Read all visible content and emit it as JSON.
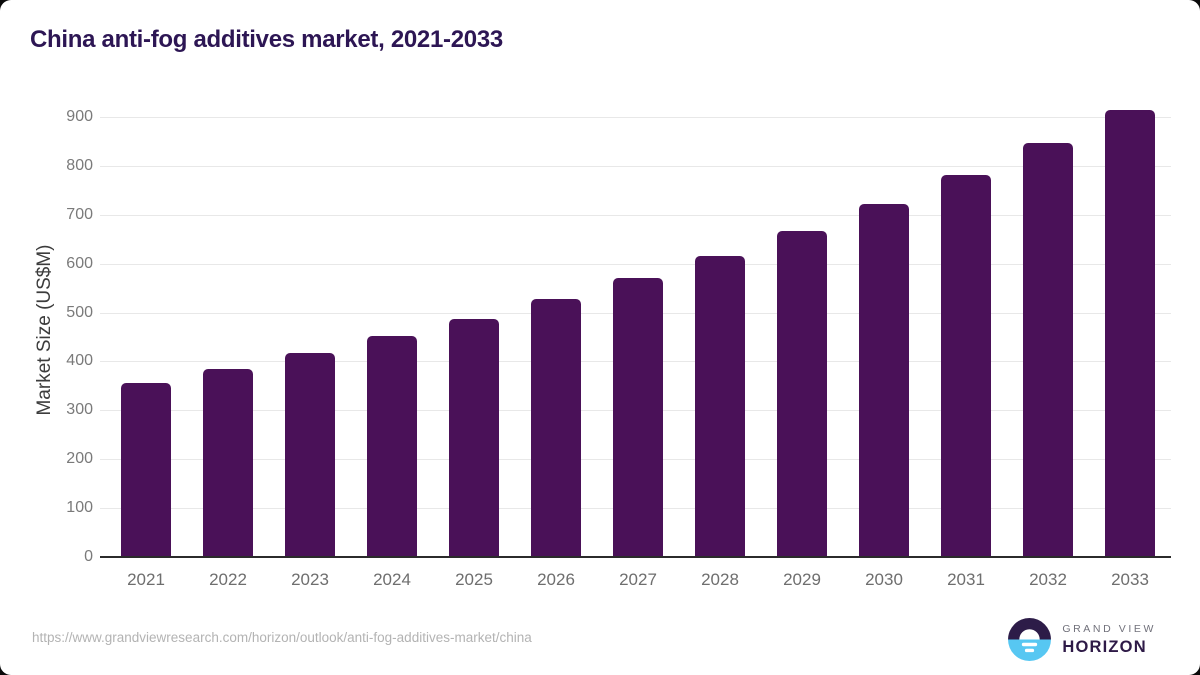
{
  "page": {
    "background_color": "#0a0a0a",
    "card_background_color": "#ffffff"
  },
  "header": {
    "title": "China anti-fog additives market, 2021-2033",
    "title_color": "#2d1654"
  },
  "chart_data": {
    "type": "bar",
    "title": "China anti-fog additives market, 2021-2033",
    "categories": [
      "2021",
      "2022",
      "2023",
      "2024",
      "2025",
      "2026",
      "2027",
      "2028",
      "2029",
      "2030",
      "2031",
      "2032",
      "2033"
    ],
    "values": [
      355,
      384,
      417,
      452,
      487,
      528,
      570,
      616,
      667,
      722,
      782,
      846,
      914
    ],
    "xlabel": "",
    "ylabel": "Market Size (US$M)",
    "ylim": [
      0,
      900
    ],
    "yticks": [
      0,
      100,
      200,
      300,
      400,
      500,
      600,
      700,
      800,
      900
    ],
    "grid": true,
    "legend": "none",
    "bar_color": "#4a1158",
    "gridline_color": "#e8e8e8",
    "axis_line_color": "#2b2b2b",
    "tick_label_color": "#6e6e6e",
    "y_axis_title_color": "#3c3c3c"
  },
  "footer": {
    "source_url": "https://www.grandviewresearch.com/horizon/outlook/anti-fog-additives-market/china",
    "logo": {
      "line1": "GRAND VIEW",
      "line2": "HORIZON",
      "circle_top_color": "#2d1c48",
      "circle_bottom_color": "#57c7f2",
      "text_secondary_color": "#71717b",
      "text_primary_color": "#2e1a47"
    }
  }
}
